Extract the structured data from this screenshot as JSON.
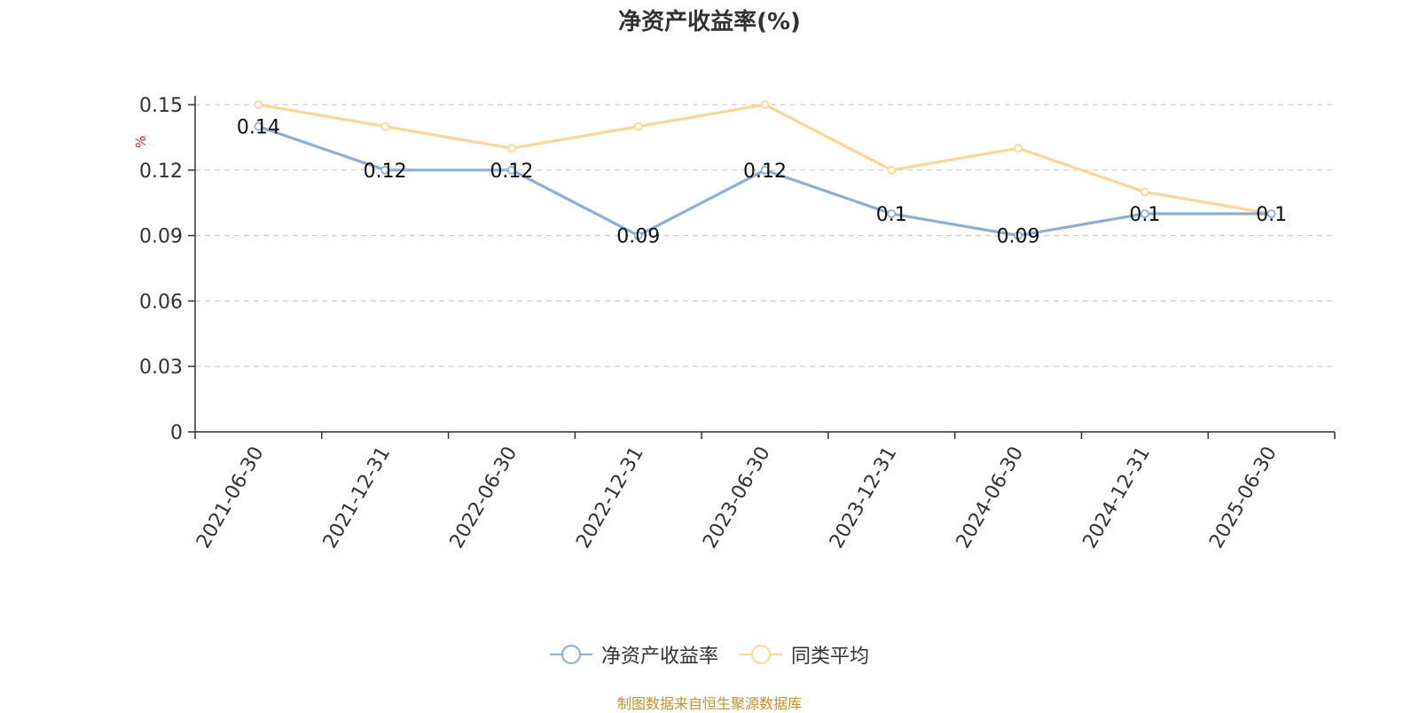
{
  "chart_data": {
    "type": "line",
    "title": "净资产收益率(%)",
    "ylabel": "%",
    "xlabel": "",
    "categories": [
      "2021-06-30",
      "2021-12-31",
      "2022-06-30",
      "2022-12-31",
      "2023-06-30",
      "2023-12-31",
      "2024-06-30",
      "2024-12-31",
      "2025-06-30"
    ],
    "series": [
      {
        "name": "净资产收益率",
        "color": "#8eaed9",
        "values": [
          0.14,
          0.12,
          0.12,
          0.09,
          0.12,
          0.1,
          0.09,
          0.1,
          0.1
        ],
        "data_labels": [
          "0.14",
          "0.12",
          "0.12",
          "0.09",
          "0.12",
          "0.1",
          "0.09",
          "0.1",
          "0.1"
        ]
      },
      {
        "name": "同类平均",
        "color": "#fcd898",
        "values": [
          0.15,
          0.14,
          0.13,
          0.14,
          0.15,
          0.12,
          0.13,
          0.11,
          0.1
        ]
      }
    ],
    "yticks": [
      "0",
      "0.03",
      "0.06",
      "0.09",
      "0.12",
      "0.15"
    ],
    "ytick_values": [
      0,
      0.03,
      0.06,
      0.09,
      0.12,
      0.15
    ],
    "ylim": [
      0,
      0.15
    ],
    "grid": true,
    "legend_position": "bottom-center"
  },
  "footer": {
    "source": "制图数据来自恒生聚源数据库"
  },
  "colors": {
    "axis": "#333333",
    "grid": "#cccccc",
    "ylabel": "#e02020",
    "source": "#c8912a"
  }
}
